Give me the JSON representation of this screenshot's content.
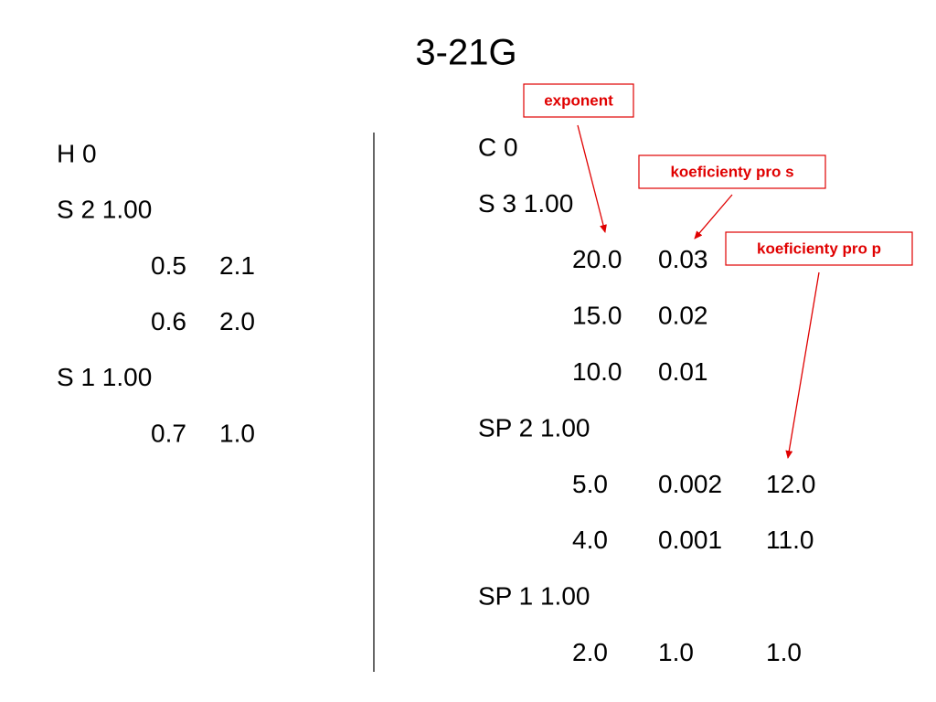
{
  "title": "3-21G",
  "left": [
    {
      "label": "H 0"
    },
    {
      "label": "S 2 1.00"
    },
    {
      "cells": [
        "0.5",
        "2.1"
      ]
    },
    {
      "cells": [
        "0.6",
        "2.0"
      ]
    },
    {
      "label": "S 1 1.00"
    },
    {
      "cells": [
        "0.7",
        "1.0"
      ]
    }
  ],
  "right": [
    {
      "label": "C 0"
    },
    {
      "label": "S 3 1.00"
    },
    {
      "cells": [
        "20.0",
        "0.03"
      ]
    },
    {
      "cells": [
        "15.0",
        "0.02"
      ]
    },
    {
      "cells": [
        "10.0",
        "0.01"
      ]
    },
    {
      "label": "SP 2 1.00"
    },
    {
      "cells": [
        "5.0",
        "0.002",
        "12.0"
      ]
    },
    {
      "cells": [
        "4.0",
        "0.001",
        "11.0"
      ]
    },
    {
      "label": "SP 1 1.00"
    },
    {
      "cells": [
        "2.0",
        "1.0",
        "1.0"
      ]
    }
  ],
  "annotations": [
    "exponent",
    "koeficienty pro s",
    "koeficienty pro p"
  ]
}
